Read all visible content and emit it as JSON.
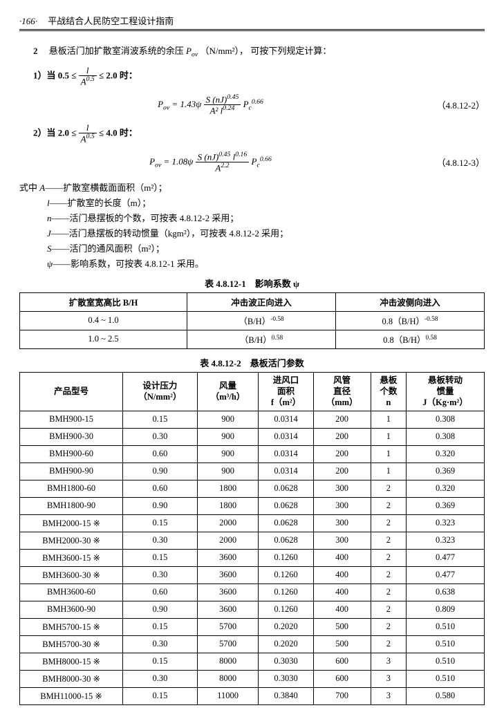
{
  "header": {
    "pageNum": "·166·",
    "title": "平战结合人民防空工程设计指南"
  },
  "section": {
    "num": "2",
    "text_a": "悬板活门加扩散室消波系统的余压 ",
    "sym": "P",
    "sub": "ov",
    "unit": "（N/mm²），",
    "text_b": "可按下列规定计算："
  },
  "cond1": {
    "label": "1）当 0.5 ≤",
    "frac_num": "l",
    "frac_den": "A^0.5",
    "tail": " ≤ 2.0 时："
  },
  "cond2": {
    "label": "2）当 2.0 ≤",
    "frac_num": "l",
    "frac_den": "A^0.5",
    "tail": " ≤ 4.0 时："
  },
  "formula1": {
    "lhs": "P",
    "lhs_sub": "ov",
    "eq": " = 1.43ψ ",
    "num": "S (nJ)",
    "num_sup": "0.45",
    "den": "A² l",
    "den_sup": "0.24",
    "tail": " P",
    "tail_sub": "c",
    "tail_sup": "0.66",
    "ref": "（4.8.12-2）"
  },
  "formula2": {
    "lhs": "P",
    "lhs_sub": "ov",
    "eq": " = 1.08ψ ",
    "num": "S (nJ)",
    "num_sup": "0.45",
    "num2": " l",
    "num2_sup": "0.16",
    "den": "A",
    "den_sup": "2.2",
    "tail": " P",
    "tail_sub": "c",
    "tail_sup": "0.66",
    "ref": "（4.8.12-3）"
  },
  "where_label": "式中",
  "where": [
    {
      "sym": "A",
      "txt": "——扩散室横截面面积（m²）；"
    },
    {
      "sym": "l",
      "txt": "——扩散室的长度（m）；"
    },
    {
      "sym": "n",
      "txt": "——活门悬摆板的个数，可按表 4.8.12-2 采用；"
    },
    {
      "sym": "J",
      "txt": "——活门悬摆板的转动惯量（kgm²），可按表 4.8.12-2 采用；"
    },
    {
      "sym": "S",
      "txt": "——活门的通风面积（m²）；"
    },
    {
      "sym": "ψ",
      "txt": "——影响系数，可按表 4.8.12-1 采用。"
    }
  ],
  "table1": {
    "title": "表 4.8.12-1　影响系数 ψ",
    "headers": [
      "扩散室宽高比 B/H",
      "冲击波正向进入",
      "冲击波侧向进入"
    ],
    "rows": [
      [
        "0.4 ~ 1.0",
        "（B/H）^-0.58",
        "0.8（B/H）^-0.58"
      ],
      [
        "1.0 ~ 2.5",
        "（B/H）^0.58",
        "0.8（B/H）^0.58"
      ]
    ]
  },
  "table2": {
    "title": "表 4.8.12-2　悬板活门参数",
    "headers": [
      {
        "l1": "产品型号",
        "l2": ""
      },
      {
        "l1": "设计压力",
        "l2": "（N/mm²）"
      },
      {
        "l1": "风量",
        "l2": "（m³/h）"
      },
      {
        "l1": "进风口",
        "l2": "面积",
        "l3": "f（m²）"
      },
      {
        "l1": "风管",
        "l2": "直径",
        "l3": "（mm）"
      },
      {
        "l1": "悬板",
        "l2": "个数",
        "l3": "n"
      },
      {
        "l1": "悬板转动",
        "l2": "惯量",
        "l3": "J（Kg·m²）"
      }
    ],
    "rows": [
      [
        "BMH900-15",
        "0.15",
        "900",
        "0.0314",
        "200",
        "1",
        "0.308"
      ],
      [
        "BMH900-30",
        "0.30",
        "900",
        "0.0314",
        "200",
        "1",
        "0.308"
      ],
      [
        "BMH900-60",
        "0.60",
        "900",
        "0.0314",
        "200",
        "1",
        "0.320"
      ],
      [
        "BMH900-90",
        "0.90",
        "900",
        "0.0314",
        "200",
        "1",
        "0.369"
      ],
      [
        "BMH1800-60",
        "0.60",
        "1800",
        "0.0628",
        "300",
        "2",
        "0.320"
      ],
      [
        "BMH1800-90",
        "0.90",
        "1800",
        "0.0628",
        "300",
        "2",
        "0.369"
      ],
      [
        "BMH2000-15 ※",
        "0.15",
        "2000",
        "0.0628",
        "300",
        "2",
        "0.323"
      ],
      [
        "BMH2000-30 ※",
        "0.30",
        "2000",
        "0.0628",
        "300",
        "2",
        "0.323"
      ],
      [
        "BMH3600-15 ※",
        "0.15",
        "3600",
        "0.1260",
        "400",
        "2",
        "0.477"
      ],
      [
        "BMH3600-30 ※",
        "0.30",
        "3600",
        "0.1260",
        "400",
        "2",
        "0.477"
      ],
      [
        "BMH3600-60",
        "0.60",
        "3600",
        "0.1260",
        "400",
        "2",
        "0.638"
      ],
      [
        "BMH3600-90",
        "0.90",
        "3600",
        "0.1260",
        "400",
        "2",
        "0.809"
      ],
      [
        "BMH5700-15 ※",
        "0.15",
        "5700",
        "0.2020",
        "500",
        "2",
        "0.510"
      ],
      [
        "BMH5700-30 ※",
        "0.30",
        "5700",
        "0.2020",
        "500",
        "2",
        "0.510"
      ],
      [
        "BMH8000-15 ※",
        "0.15",
        "8000",
        "0.3030",
        "600",
        "3",
        "0.510"
      ],
      [
        "BMH8000-30 ※",
        "0.30",
        "8000",
        "0.3030",
        "600",
        "3",
        "0.510"
      ],
      [
        "BMH11000-15 ※",
        "0.15",
        "11000",
        "0.3840",
        "700",
        "3",
        "0.580"
      ]
    ]
  }
}
